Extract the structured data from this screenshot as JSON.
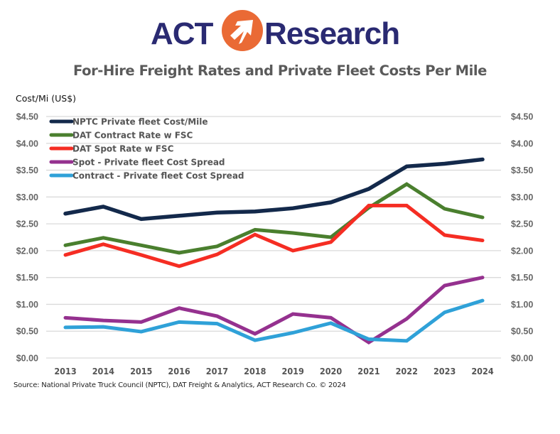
{
  "logo": {
    "left_text": "ACT",
    "right_text": "Research",
    "brand_navy": "#2a2a72",
    "brand_orange": "#ea6a35"
  },
  "chart_data": {
    "type": "line",
    "title": "For-Hire Freight Rates and Private Fleet Costs Per Mile",
    "ylabel": "Cost/Mi (US$)",
    "xlabel": "",
    "x": [
      "2013",
      "2014",
      "2015",
      "2016",
      "2017",
      "2018",
      "2019",
      "2020",
      "2021",
      "2022",
      "2023",
      "2024"
    ],
    "ylim": [
      0,
      4.5
    ],
    "yticks": [
      "$0.00",
      "$0.50",
      "$1.00",
      "$1.50",
      "$2.00",
      "$2.50",
      "$3.00",
      "$3.50",
      "$4.00",
      "$4.50"
    ],
    "ytick_values": [
      0,
      0.5,
      1.0,
      1.5,
      2.0,
      2.5,
      3.0,
      3.5,
      4.0,
      4.5
    ],
    "grid": true,
    "secondary_axis": "mirrored right",
    "legend_position": "top-left",
    "series": [
      {
        "name": "NPTC Private fleet Cost/Mile",
        "color": "#13294b",
        "values": [
          2.69,
          2.82,
          2.59,
          2.65,
          2.71,
          2.73,
          2.79,
          2.9,
          3.15,
          3.57,
          3.62,
          3.7
        ]
      },
      {
        "name": "DAT Contract Rate w FSC",
        "color": "#4a7f2e",
        "values": [
          2.1,
          2.24,
          2.1,
          1.96,
          2.08,
          2.39,
          2.33,
          2.25,
          2.8,
          3.24,
          2.78,
          2.62
        ]
      },
      {
        "name": "DAT Spot Rate w FSC",
        "color": "#f52d23",
        "values": [
          1.92,
          2.12,
          1.92,
          1.71,
          1.93,
          2.3,
          2.0,
          2.16,
          2.84,
          2.84,
          2.29,
          2.19
        ]
      },
      {
        "name": "Spot - Private fleet Cost Spread",
        "color": "#95318f",
        "values": [
          0.75,
          0.7,
          0.67,
          0.93,
          0.78,
          0.45,
          0.82,
          0.75,
          0.29,
          0.73,
          1.35,
          1.5
        ]
      },
      {
        "name": "Contract - Private fleet Cost Spread",
        "color": "#2fa1d8",
        "values": [
          0.57,
          0.58,
          0.49,
          0.67,
          0.64,
          0.33,
          0.47,
          0.65,
          0.35,
          0.32,
          0.85,
          1.07
        ]
      }
    ]
  },
  "source": "Source: National Private Truck Council (NPTC), DAT Freight & Analytics, ACT Research Co. © 2024"
}
